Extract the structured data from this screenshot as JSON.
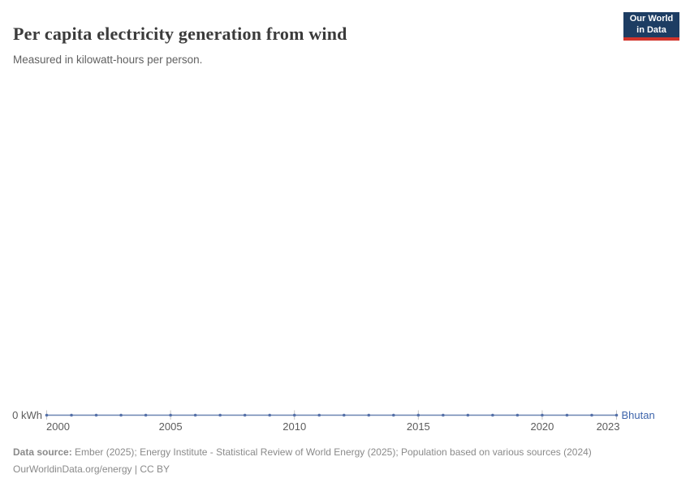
{
  "header": {
    "title": "Per capita electricity generation from wind",
    "subtitle": "Measured in kilowatt-hours per person.",
    "logo": {
      "line1": "Our World",
      "line2": "in Data"
    }
  },
  "chart_data": {
    "type": "line",
    "title": "Per capita electricity generation from wind",
    "subtitle": "Measured in kilowatt-hours per person.",
    "unit": "kilowatt-hours per person",
    "x": [
      2000,
      2001,
      2002,
      2003,
      2004,
      2005,
      2006,
      2007,
      2008,
      2009,
      2010,
      2011,
      2012,
      2013,
      2014,
      2015,
      2016,
      2017,
      2018,
      2019,
      2020,
      2021,
      2022,
      2023
    ],
    "series": [
      {
        "name": "Bhutan",
        "values": [
          0,
          0,
          0,
          0,
          0,
          0,
          0,
          0,
          0,
          0,
          0,
          0,
          0,
          0,
          0,
          0,
          0,
          0,
          0,
          0,
          0,
          0,
          0,
          0
        ]
      }
    ],
    "x_ticks": [
      2000,
      2005,
      2010,
      2015,
      2020,
      2023
    ],
    "x_range": [
      2000,
      2023
    ],
    "y_axis_label": "0 kWh",
    "ylim": [
      0,
      0
    ],
    "grid": false,
    "legend_position": "end-of-line",
    "entity_label": "Bhutan"
  },
  "footer": {
    "datasource_label": "Data source:",
    "datasource_text": " Ember (2025); Energy Institute - Statistical Review of World Energy (2025); Population based on various sources (2024)",
    "line2_url": "OurWorldinData.org/energy",
    "line2_sep": " | ",
    "line2_license": "CC BY"
  },
  "colors": {
    "line": "#6a84b1",
    "marker": "#5470a8",
    "tick": "#c4c4c4",
    "axis_label": "#5c5c5c",
    "entity_label": "#3d64ab",
    "title": "#3b3b3b",
    "subtitle": "#616161",
    "footer": "#8a8a8a",
    "logo_bg": "#1d3d63",
    "logo_stripe": "#d1342b"
  }
}
